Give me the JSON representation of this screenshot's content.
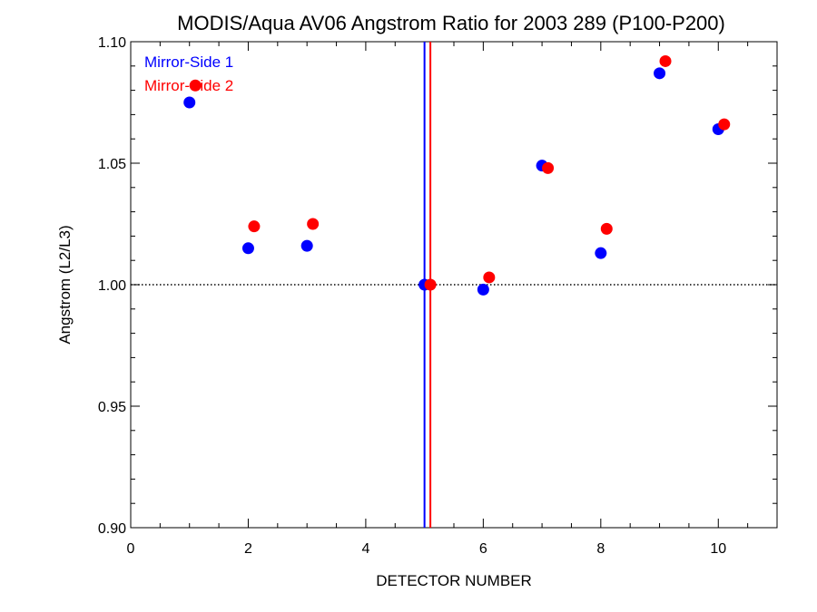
{
  "chart_data": {
    "type": "scatter",
    "title": "MODIS/Aqua AV06 Angstrom Ratio for 2003 289 (P100-P200)",
    "xlabel": "DETECTOR NUMBER",
    "ylabel": "Angstrom (L2/L3)",
    "xlim": [
      0,
      11
    ],
    "ylim": [
      0.9,
      1.1
    ],
    "x_ticks": [
      0,
      2,
      4,
      6,
      8,
      10
    ],
    "x_tick_labels": [
      "0",
      "2",
      "4",
      "6",
      "8",
      "10"
    ],
    "y_ticks": [
      0.9,
      0.95,
      1.0,
      1.05,
      1.1
    ],
    "y_tick_labels": [
      "0.90",
      "0.95",
      "1.00",
      "1.05",
      "1.10"
    ],
    "x_minor_step": 0.5,
    "y_minor_step": 0.01,
    "reference_line": {
      "y": 1.0,
      "style": "dotted",
      "color": "#000000"
    },
    "vertical_lines": [
      {
        "x": 5.0,
        "color": "#0000ff"
      },
      {
        "x": 5.1,
        "color": "#ff0000"
      }
    ],
    "legend_position": "top-left",
    "grid": false,
    "series": [
      {
        "name": "Mirror-Side 1",
        "color": "#0000ff",
        "x": [
          1,
          2,
          3,
          5,
          6,
          7,
          8,
          9,
          10
        ],
        "y": [
          1.075,
          1.015,
          1.016,
          1.0,
          0.998,
          1.049,
          1.013,
          1.087,
          1.064
        ]
      },
      {
        "name": "Mirror-Side 2",
        "color": "#ff0000",
        "x": [
          1.1,
          2.1,
          3.1,
          5.1,
          6.1,
          7.1,
          8.1,
          9.1,
          10.1
        ],
        "y": [
          1.082,
          1.024,
          1.025,
          1.0,
          1.003,
          1.048,
          1.023,
          1.092,
          1.066
        ]
      }
    ]
  }
}
